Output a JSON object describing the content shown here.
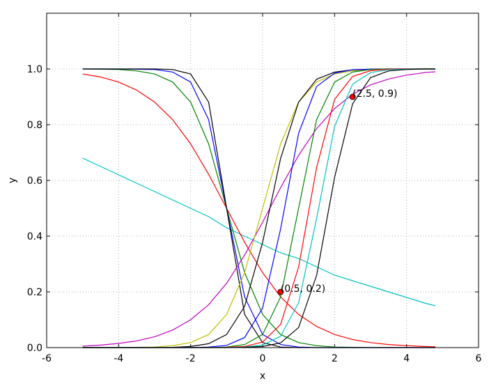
{
  "chart_data": {
    "type": "line",
    "x_label": "x",
    "y_label": "y",
    "xlim": [
      -6,
      6
    ],
    "xticks": [
      -6,
      -4,
      -2,
      0,
      2,
      4,
      6
    ],
    "ylim": [
      0,
      1.2
    ],
    "yticks": [
      {
        "value": 0,
        "label": "0.0"
      },
      0.2,
      0.4,
      0.6,
      0.8,
      {
        "value": 1,
        "label": "1.0"
      }
    ],
    "grid": true,
    "x": [
      -5,
      -4.5,
      -4,
      -3.5,
      -3,
      -2.5,
      -2,
      -1.5,
      -1,
      -0.5,
      0,
      0.5,
      1,
      1.5,
      2,
      2.5,
      3,
      3.5,
      4,
      4.5,
      4.8
    ],
    "series": [
      {
        "color": "#00bfbf",
        "values": [
          0.68,
          0.65,
          0.62,
          0.59,
          0.56,
          0.53,
          0.5,
          0.47,
          0.43,
          0.4,
          0.37,
          0.34,
          0.32,
          0.29,
          0.26,
          0.24,
          0.22,
          0.2,
          0.18,
          0.16,
          0.15
        ]
      },
      {
        "color": "#ff0000",
        "values": [
          0.982,
          0.971,
          0.953,
          0.924,
          0.881,
          0.818,
          0.731,
          0.622,
          0.5,
          0.378,
          0.269,
          0.182,
          0.119,
          0.076,
          0.047,
          0.029,
          0.018,
          0.011,
          0.007,
          0.004,
          0.003
        ]
      },
      {
        "color": "#008000",
        "values": [
          1,
          0.999,
          0.998,
          0.993,
          0.982,
          0.953,
          0.881,
          0.731,
          0.5,
          0.269,
          0.119,
          0.047,
          0.018,
          0.007,
          0.002,
          0.001,
          0,
          0,
          0,
          0,
          0
        ]
      },
      {
        "color": "#0000ff",
        "values": [
          1,
          1,
          1,
          0.999,
          0.998,
          0.989,
          0.953,
          0.818,
          0.5,
          0.182,
          0.047,
          0.011,
          0.002,
          0,
          0,
          0,
          0,
          0,
          0,
          0,
          0
        ]
      },
      {
        "color": "#000000",
        "values": [
          1,
          1,
          1,
          1,
          1,
          0.998,
          0.982,
          0.881,
          0.5,
          0.119,
          0.018,
          0.002,
          0,
          0,
          0,
          0,
          0,
          0,
          0,
          0,
          0
        ]
      },
      {
        "color": "#bf00bf",
        "values": [
          0.005,
          0.009,
          0.015,
          0.024,
          0.039,
          0.063,
          0.1,
          0.154,
          0.231,
          0.332,
          0.45,
          0.574,
          0.69,
          0.786,
          0.858,
          0.909,
          0.943,
          0.964,
          0.978,
          0.987,
          0.99
        ]
      },
      {
        "color": "#bfbf00",
        "values": [
          0,
          0,
          0,
          0.001,
          0.002,
          0.007,
          0.018,
          0.047,
          0.119,
          0.269,
          0.5,
          0.731,
          0.881,
          0.953,
          0.982,
          0.993,
          0.998,
          0.999,
          1,
          1,
          1
        ]
      },
      {
        "color": "#000000",
        "values": [
          0,
          0,
          0,
          0,
          0,
          0.001,
          0.004,
          0.014,
          0.047,
          0.148,
          0.378,
          0.679,
          0.881,
          0.963,
          0.989,
          0.997,
          0.999,
          1,
          1,
          1,
          1
        ]
      },
      {
        "color": "#0000ff",
        "values": [
          0,
          0,
          0,
          0,
          0,
          0,
          0,
          0.002,
          0.008,
          0.036,
          0.142,
          0.426,
          0.769,
          0.937,
          0.985,
          0.997,
          0.999,
          1,
          1,
          1,
          1
        ]
      },
      {
        "color": "#008000",
        "values": [
          0,
          0,
          0,
          0,
          0,
          0,
          0,
          0,
          0.002,
          0.011,
          0.047,
          0.182,
          0.5,
          0.818,
          0.953,
          0.989,
          0.998,
          1,
          1,
          1,
          1
        ]
      },
      {
        "color": "#ff0000",
        "values": [
          0,
          0,
          0,
          0,
          0,
          0,
          0,
          0,
          0.001,
          0.004,
          0.02,
          0.083,
          0.289,
          0.646,
          0.891,
          0.973,
          0.994,
          0.999,
          1,
          1,
          1
        ]
      },
      {
        "color": "#00bfbf",
        "values": [
          0,
          0,
          0,
          0,
          0,
          0,
          0,
          0,
          0,
          0.002,
          0.009,
          0.041,
          0.161,
          0.463,
          0.794,
          0.945,
          0.987,
          0.997,
          0.999,
          1,
          1
        ]
      },
      {
        "color": "#000000",
        "values": [
          0,
          0,
          0,
          0,
          0,
          0,
          0,
          0,
          0,
          0.001,
          0.004,
          0.017,
          0.072,
          0.259,
          0.611,
          0.875,
          0.969,
          0.993,
          0.998,
          1,
          1
        ]
      }
    ],
    "points": [
      {
        "x": 0.5,
        "y": 0.2,
        "label": "(0.5, 0.2)",
        "color": "#ff0000"
      },
      {
        "x": 2.5,
        "y": 0.9,
        "label": "(2.5, 0.9)",
        "color": "#ff0000"
      }
    ]
  }
}
